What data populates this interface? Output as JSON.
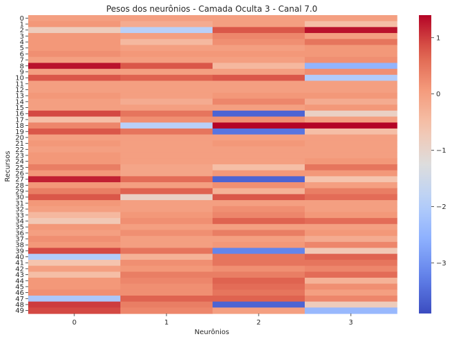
{
  "chart_data": {
    "type": "heatmap",
    "title": "Pesos dos neurônios - Camada Oculta 3 - Canal 7.0",
    "xlabel": "Neurônios",
    "ylabel": "Recursos",
    "colormap": "coolwarm",
    "x_categories": [
      "0",
      "1",
      "2",
      "3"
    ],
    "y_categories": [
      "0",
      "1",
      "2",
      "3",
      "4",
      "5",
      "6",
      "7",
      "8",
      "9",
      "10",
      "11",
      "12",
      "13",
      "14",
      "15",
      "16",
      "17",
      "18",
      "19",
      "20",
      "21",
      "22",
      "23",
      "24",
      "25",
      "26",
      "27",
      "28",
      "29",
      "30",
      "31",
      "32",
      "33",
      "34",
      "35",
      "36",
      "37",
      "38",
      "39",
      "40",
      "41",
      "42",
      "43",
      "44",
      "45",
      "46",
      "47",
      "48",
      "49"
    ],
    "vmin": -3.9,
    "vmax": 1.4,
    "colorbar_ticks": [
      1,
      0,
      -1,
      -2,
      -3
    ],
    "colorbar_tick_labels": [
      "1",
      "0",
      "−1",
      "−2",
      "−3"
    ],
    "values": [
      [
        0.0,
        0.0,
        0.0,
        0.0
      ],
      [
        0.1,
        -0.2,
        0.0,
        -0.5
      ],
      [
        -0.8,
        -1.9,
        0.8,
        1.3
      ],
      [
        0.1,
        0.0,
        0.3,
        0.0
      ],
      [
        0.1,
        -0.4,
        0.2,
        0.5
      ],
      [
        0.1,
        0.0,
        0.0,
        0.1
      ],
      [
        0.2,
        0.1,
        0.1,
        0.1
      ],
      [
        0.0,
        0.0,
        0.0,
        0.2
      ],
      [
        1.3,
        0.8,
        -0.4,
        -2.5
      ],
      [
        0.0,
        0.0,
        0.0,
        0.2
      ],
      [
        0.8,
        0.7,
        0.8,
        -2.0
      ],
      [
        0.0,
        0.0,
        0.0,
        0.0
      ],
      [
        0.0,
        0.0,
        0.0,
        0.0
      ],
      [
        0.1,
        0.0,
        0.1,
        0.1
      ],
      [
        0.0,
        -0.2,
        0.3,
        -0.2
      ],
      [
        0.0,
        0.0,
        0.0,
        0.1
      ],
      [
        0.9,
        0.5,
        -3.6,
        -0.9
      ],
      [
        -0.5,
        0.2,
        0.2,
        0.0
      ],
      [
        0.3,
        -1.9,
        1.4,
        1.4
      ],
      [
        0.8,
        0.5,
        -3.4,
        -0.5
      ],
      [
        0.0,
        0.0,
        0.0,
        0.0
      ],
      [
        0.1,
        0.0,
        0.1,
        0.0
      ],
      [
        0.0,
        0.0,
        0.0,
        0.0
      ],
      [
        0.1,
        0.0,
        0.0,
        0.0
      ],
      [
        0.1,
        0.0,
        0.0,
        0.1
      ],
      [
        0.4,
        -0.1,
        -0.5,
        0.5
      ],
      [
        0.1,
        -0.1,
        0.1,
        0.1
      ],
      [
        1.2,
        0.6,
        -3.6,
        -0.6
      ],
      [
        0.1,
        0.0,
        0.2,
        0.0
      ],
      [
        0.4,
        0.7,
        -0.3,
        0.4
      ],
      [
        0.8,
        -0.9,
        0.8,
        0.6
      ],
      [
        0.1,
        0.0,
        0.0,
        0.0
      ],
      [
        0.0,
        0.0,
        0.2,
        0.0
      ],
      [
        -0.4,
        0.1,
        0.3,
        0.1
      ],
      [
        -0.7,
        0.2,
        0.7,
        0.6
      ],
      [
        0.1,
        0.0,
        0.0,
        0.0
      ],
      [
        0.0,
        0.2,
        0.4,
        0.1
      ],
      [
        0.2,
        0.0,
        0.0,
        -0.2
      ],
      [
        0.1,
        0.0,
        0.1,
        0.3
      ],
      [
        0.9,
        0.5,
        -3.2,
        -0.7
      ],
      [
        -2.0,
        -0.3,
        0.5,
        0.7
      ],
      [
        -0.6,
        0.2,
        0.5,
        0.5
      ],
      [
        0.0,
        0.1,
        0.2,
        0.3
      ],
      [
        -0.5,
        0.4,
        0.4,
        0.6
      ],
      [
        0.1,
        0.3,
        0.7,
        -0.3
      ],
      [
        0.1,
        0.2,
        0.6,
        0.2
      ],
      [
        0.2,
        0.2,
        0.5,
        0.0
      ],
      [
        -2.1,
        0.7,
        0.7,
        0.3
      ],
      [
        1.0,
        0.4,
        -3.6,
        -0.8
      ],
      [
        0.9,
        0.3,
        0.0,
        -2.4
      ]
    ]
  }
}
